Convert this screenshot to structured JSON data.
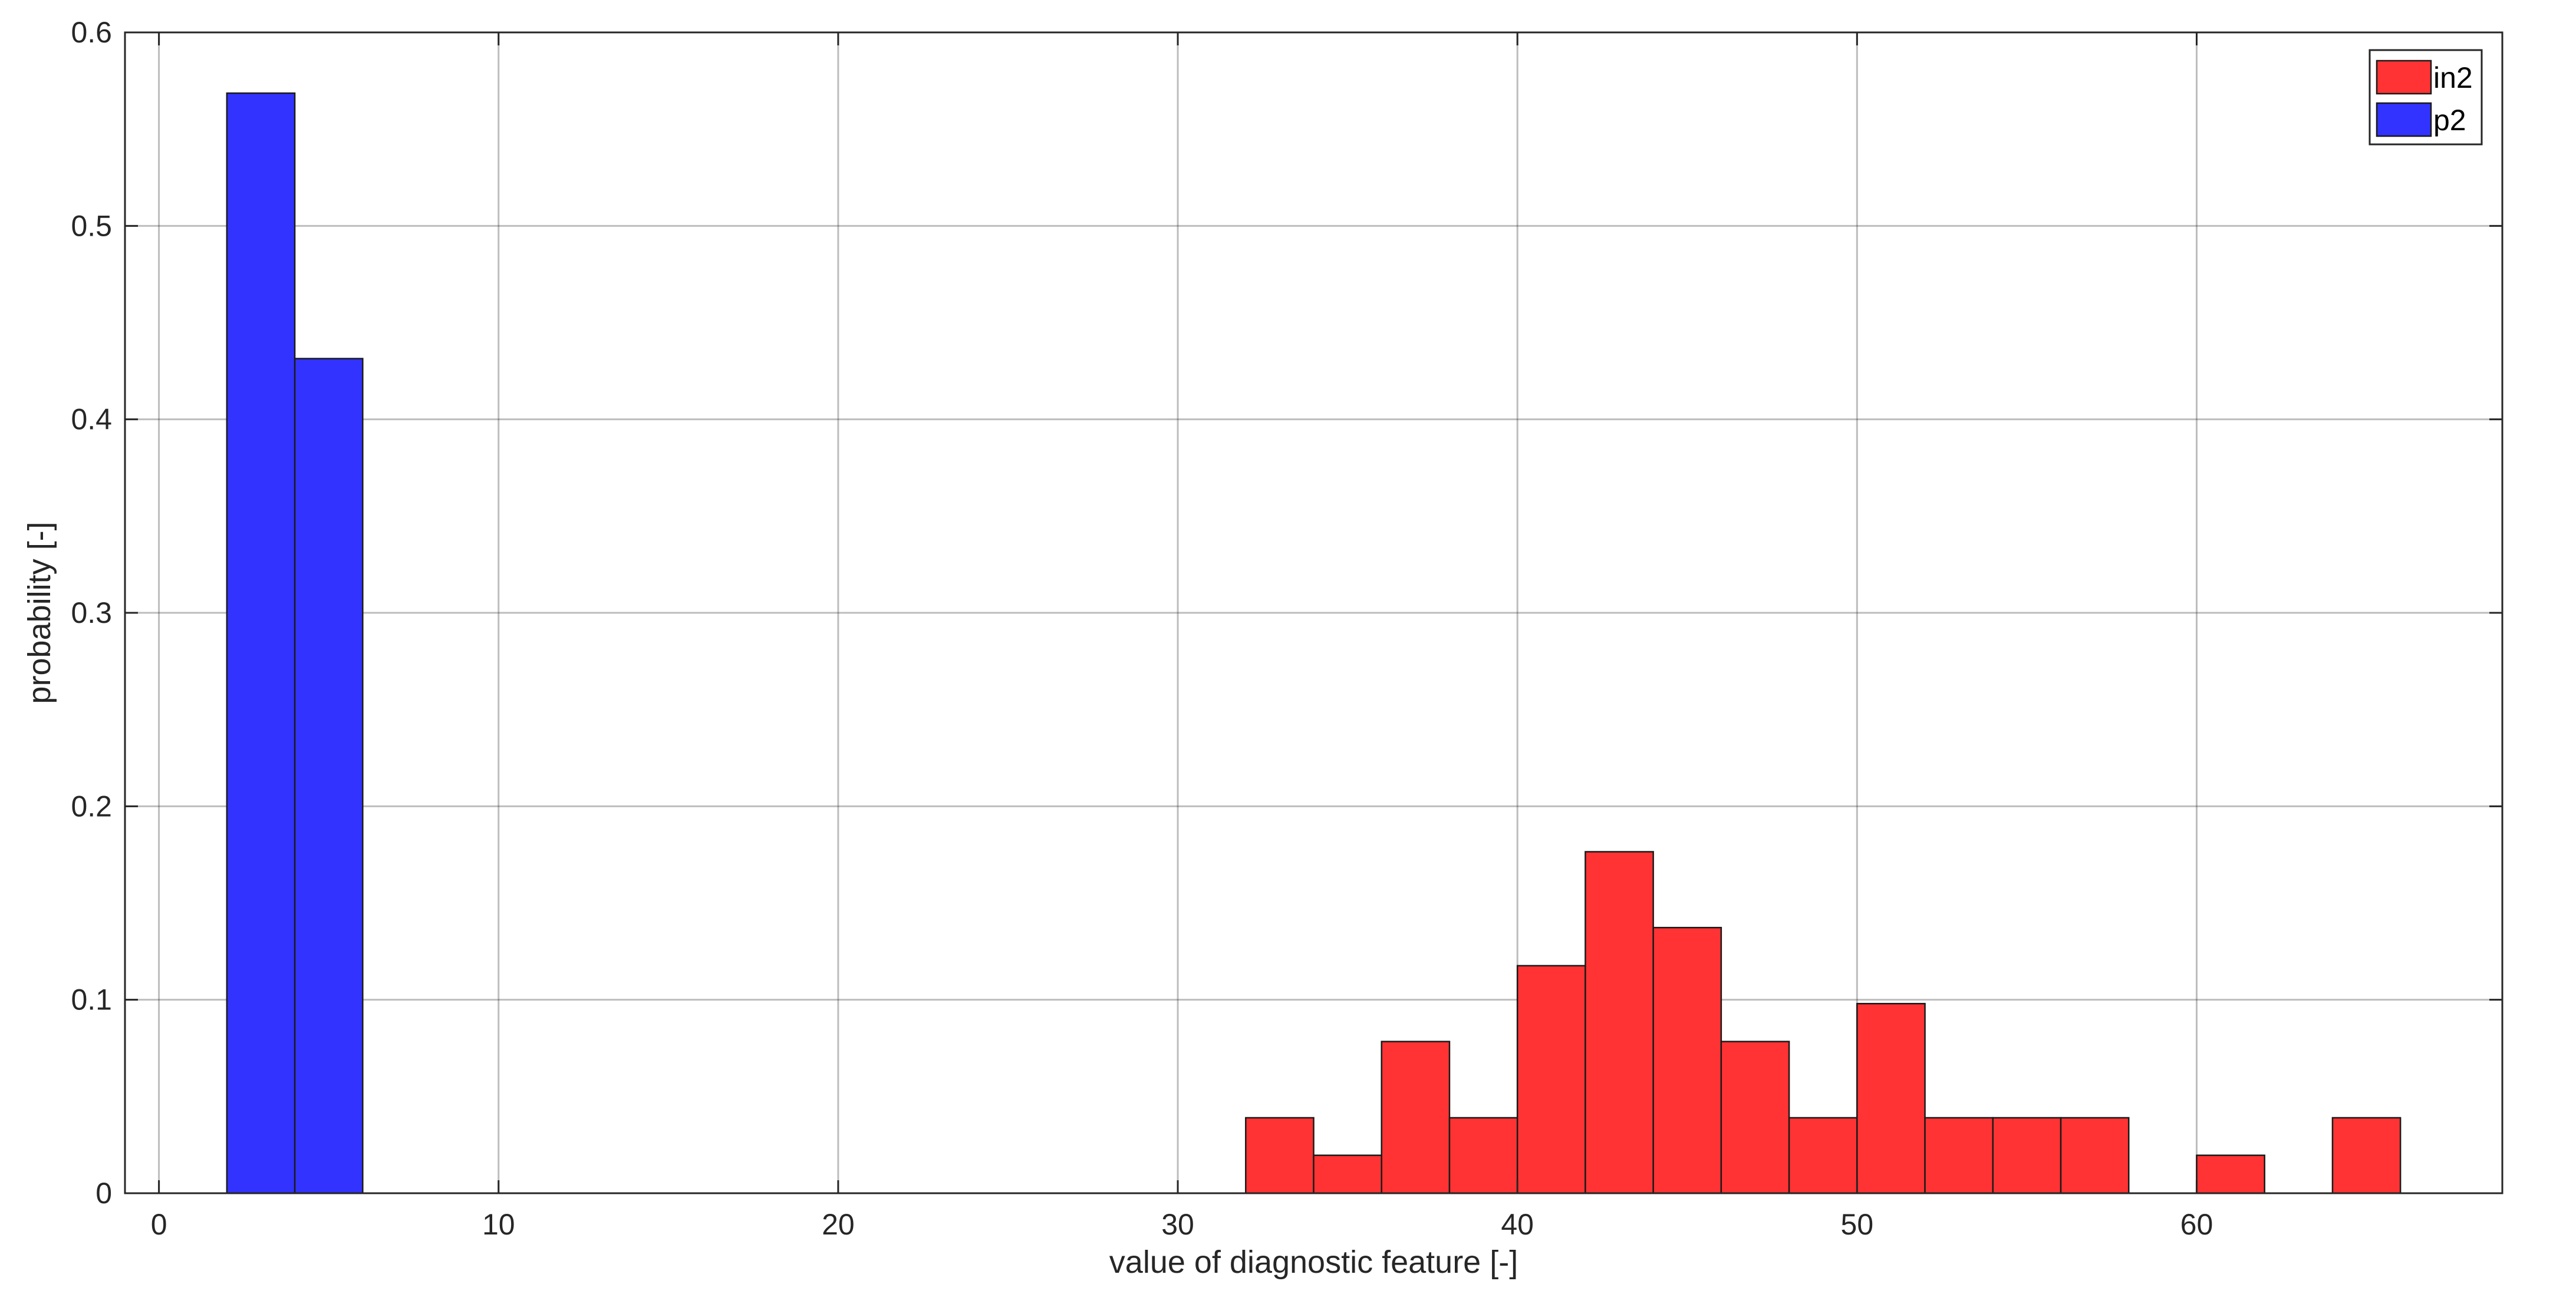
{
  "chart_data": {
    "type": "bar",
    "title": "",
    "xlabel": "value of diagnostic feature [-]",
    "ylabel": "probability [-]",
    "xlim": [
      -1,
      69
    ],
    "ylim": [
      0,
      0.6
    ],
    "xticks": [
      "0",
      "10",
      "20",
      "30",
      "40",
      "50",
      "60"
    ],
    "xtick_values": [
      0,
      10,
      20,
      30,
      40,
      50,
      60
    ],
    "yticks": [
      "0",
      "0.1",
      "0.2",
      "0.3",
      "0.4",
      "0.5",
      "0.6"
    ],
    "ytick_values": [
      0,
      0.1,
      0.2,
      0.3,
      0.4,
      0.5,
      0.6
    ],
    "grid": true,
    "legend_position": "top-right",
    "bin_width": 2,
    "series": [
      {
        "name": "in2",
        "color": "#ff3333",
        "bins": [
          {
            "x0": 32,
            "x1": 34,
            "value": 0.039
          },
          {
            "x0": 34,
            "x1": 36,
            "value": 0.0196
          },
          {
            "x0": 36,
            "x1": 38,
            "value": 0.0784
          },
          {
            "x0": 38,
            "x1": 40,
            "value": 0.039
          },
          {
            "x0": 40,
            "x1": 42,
            "value": 0.1176
          },
          {
            "x0": 42,
            "x1": 44,
            "value": 0.1765
          },
          {
            "x0": 44,
            "x1": 46,
            "value": 0.1373
          },
          {
            "x0": 46,
            "x1": 48,
            "value": 0.0784
          },
          {
            "x0": 48,
            "x1": 50,
            "value": 0.039
          },
          {
            "x0": 50,
            "x1": 52,
            "value": 0.098
          },
          {
            "x0": 52,
            "x1": 54,
            "value": 0.039
          },
          {
            "x0": 54,
            "x1": 56,
            "value": 0.039
          },
          {
            "x0": 56,
            "x1": 58,
            "value": 0.039
          },
          {
            "x0": 60,
            "x1": 62,
            "value": 0.0196
          },
          {
            "x0": 64,
            "x1": 66,
            "value": 0.039
          }
        ]
      },
      {
        "name": "p2",
        "color": "#3333ff",
        "bins": [
          {
            "x0": 2,
            "x1": 4,
            "value": 0.5686
          },
          {
            "x0": 4,
            "x1": 6,
            "value": 0.4314
          }
        ]
      }
    ]
  }
}
